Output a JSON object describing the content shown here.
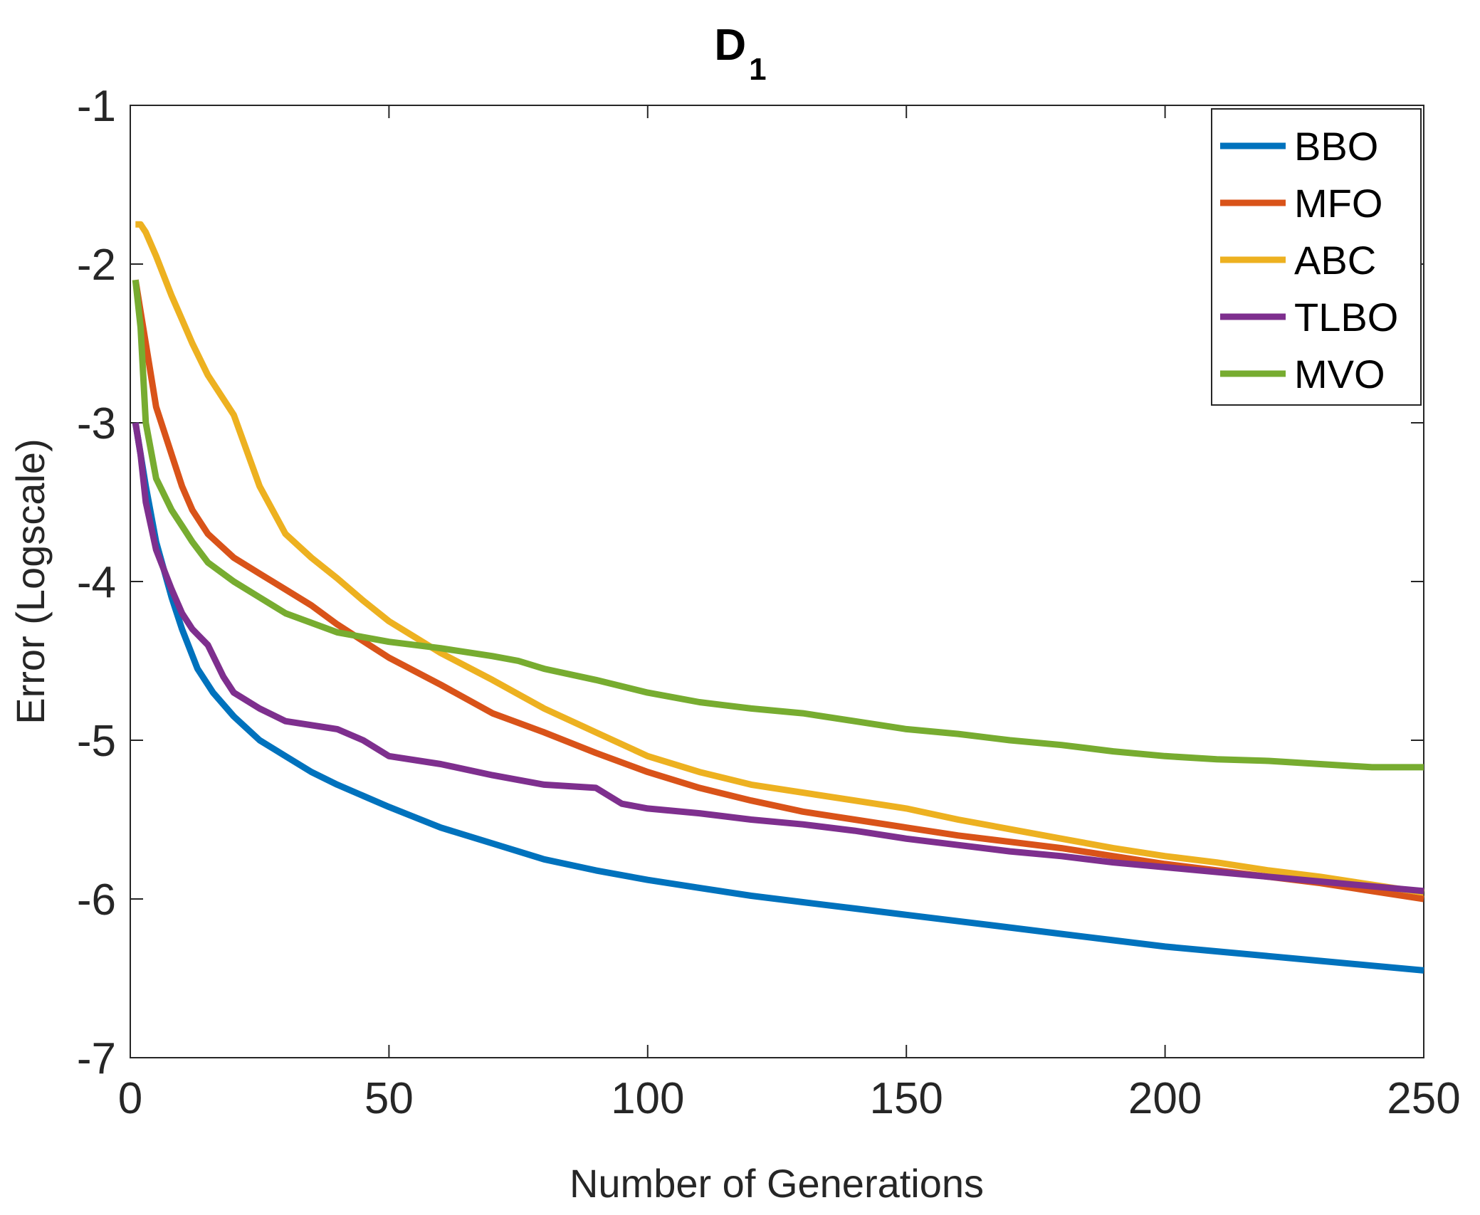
{
  "chart_data": {
    "type": "line",
    "title": "D",
    "title_subscript": "1",
    "xlabel": "Number of Generations",
    "ylabel": "Error (Logscale)",
    "xlim": [
      0,
      250
    ],
    "ylim": [
      -7,
      -1
    ],
    "xticks": [
      0,
      50,
      100,
      150,
      200,
      250
    ],
    "yticks": [
      -7,
      -6,
      -5,
      -4,
      -3,
      -2,
      -1
    ],
    "grid": false,
    "legend_position": "top-right",
    "series": [
      {
        "name": "BBO",
        "color": "#0072BD",
        "x": [
          1,
          3,
          5,
          8,
          10,
          13,
          16,
          20,
          25,
          30,
          35,
          40,
          50,
          60,
          70,
          80,
          90,
          100,
          110,
          120,
          130,
          140,
          150,
          160,
          170,
          180,
          190,
          200,
          210,
          220,
          230,
          240,
          250
        ],
        "y": [
          -3.0,
          -3.4,
          -3.75,
          -4.1,
          -4.3,
          -4.55,
          -4.7,
          -4.85,
          -5.0,
          -5.1,
          -5.2,
          -5.28,
          -5.42,
          -5.55,
          -5.65,
          -5.75,
          -5.82,
          -5.88,
          -5.93,
          -5.98,
          -6.02,
          -6.06,
          -6.1,
          -6.14,
          -6.18,
          -6.22,
          -6.26,
          -6.3,
          -6.33,
          -6.36,
          -6.39,
          -6.42,
          -6.45
        ]
      },
      {
        "name": "MFO",
        "color": "#D95319",
        "x": [
          1,
          2,
          3,
          5,
          8,
          10,
          12,
          15,
          20,
          25,
          30,
          35,
          40,
          50,
          60,
          70,
          80,
          90,
          100,
          110,
          120,
          130,
          140,
          150,
          160,
          170,
          180,
          190,
          200,
          210,
          220,
          230,
          240,
          250
        ],
        "y": [
          -2.1,
          -2.3,
          -2.5,
          -2.9,
          -3.2,
          -3.4,
          -3.55,
          -3.7,
          -3.85,
          -3.95,
          -4.05,
          -4.15,
          -4.27,
          -4.48,
          -4.65,
          -4.83,
          -4.95,
          -5.08,
          -5.2,
          -5.3,
          -5.38,
          -5.45,
          -5.5,
          -5.55,
          -5.6,
          -5.64,
          -5.68,
          -5.73,
          -5.78,
          -5.82,
          -5.86,
          -5.9,
          -5.95,
          -6.0
        ]
      },
      {
        "name": "ABC",
        "color": "#EDB120",
        "x": [
          1,
          2,
          3,
          5,
          8,
          10,
          12,
          15,
          20,
          25,
          30,
          35,
          40,
          45,
          50,
          60,
          70,
          80,
          90,
          100,
          110,
          120,
          130,
          140,
          150,
          160,
          170,
          180,
          190,
          200,
          210,
          220,
          230,
          240,
          250
        ],
        "y": [
          -1.75,
          -1.75,
          -1.8,
          -1.95,
          -2.2,
          -2.35,
          -2.5,
          -2.7,
          -2.95,
          -3.4,
          -3.7,
          -3.85,
          -3.98,
          -4.12,
          -4.25,
          -4.45,
          -4.62,
          -4.8,
          -4.95,
          -5.1,
          -5.2,
          -5.28,
          -5.33,
          -5.38,
          -5.43,
          -5.5,
          -5.56,
          -5.62,
          -5.68,
          -5.73,
          -5.77,
          -5.82,
          -5.86,
          -5.91,
          -5.96
        ]
      },
      {
        "name": "TLBO",
        "color": "#7E2F8E",
        "x": [
          1,
          2,
          3,
          5,
          8,
          10,
          12,
          15,
          18,
          20,
          25,
          30,
          40,
          45,
          50,
          60,
          70,
          80,
          90,
          95,
          100,
          110,
          120,
          130,
          140,
          150,
          160,
          170,
          180,
          190,
          200,
          210,
          220,
          230,
          240,
          250
        ],
        "y": [
          -3.0,
          -3.2,
          -3.5,
          -3.8,
          -4.05,
          -4.2,
          -4.3,
          -4.4,
          -4.6,
          -4.7,
          -4.8,
          -4.88,
          -4.93,
          -5.0,
          -5.1,
          -5.15,
          -5.22,
          -5.28,
          -5.3,
          -5.4,
          -5.43,
          -5.46,
          -5.5,
          -5.53,
          -5.57,
          -5.62,
          -5.66,
          -5.7,
          -5.73,
          -5.77,
          -5.8,
          -5.83,
          -5.86,
          -5.89,
          -5.92,
          -5.95
        ]
      },
      {
        "name": "MVO",
        "color": "#77AC30",
        "x": [
          1,
          2,
          3,
          5,
          8,
          10,
          12,
          15,
          20,
          25,
          30,
          40,
          50,
          60,
          70,
          75,
          80,
          90,
          100,
          110,
          120,
          130,
          140,
          150,
          160,
          170,
          180,
          190,
          200,
          210,
          220,
          230,
          240,
          250
        ],
        "y": [
          -2.1,
          -2.4,
          -3.0,
          -3.35,
          -3.55,
          -3.65,
          -3.75,
          -3.88,
          -4.0,
          -4.1,
          -4.2,
          -4.32,
          -4.38,
          -4.42,
          -4.47,
          -4.5,
          -4.55,
          -4.62,
          -4.7,
          -4.76,
          -4.8,
          -4.83,
          -4.88,
          -4.93,
          -4.96,
          -5.0,
          -5.03,
          -5.07,
          -5.1,
          -5.12,
          -5.13,
          -5.15,
          -5.17,
          -5.17
        ]
      }
    ]
  }
}
